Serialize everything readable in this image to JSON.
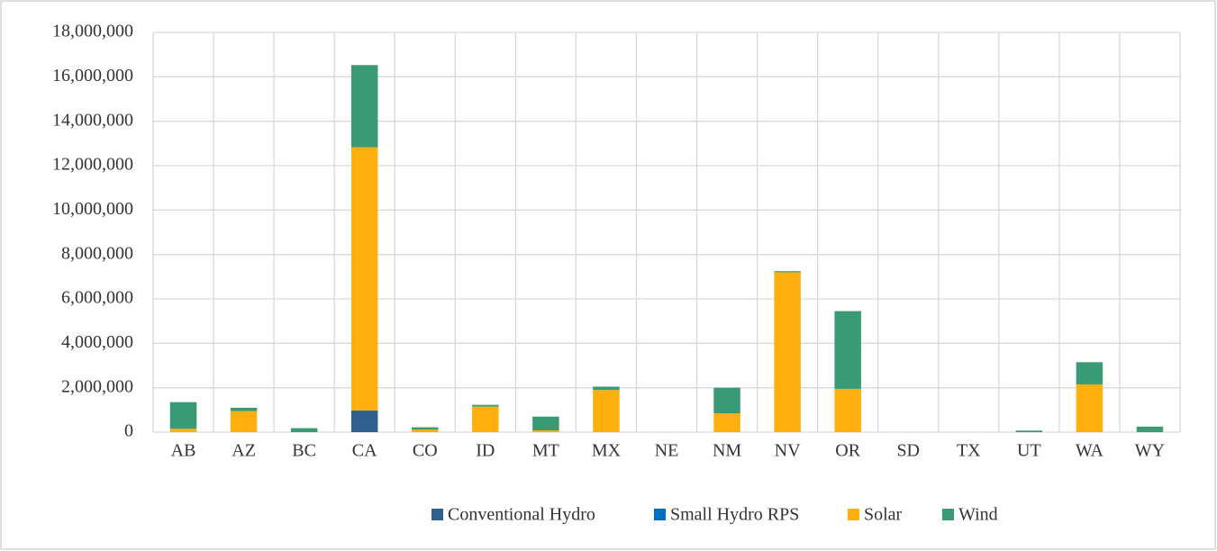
{
  "chart_data": {
    "type": "stacked_bar",
    "categories": [
      "AB",
      "AZ",
      "BC",
      "CA",
      "CO",
      "ID",
      "MT",
      "MX",
      "NE",
      "NM",
      "NV",
      "OR",
      "SD",
      "TX",
      "UT",
      "WA",
      "WY"
    ],
    "series": [
      {
        "name": "Conventional Hydro",
        "color": "#2f5f8c",
        "values": [
          0,
          0,
          0,
          950000,
          0,
          0,
          0,
          0,
          0,
          0,
          0,
          0,
          0,
          0,
          0,
          0,
          0
        ]
      },
      {
        "name": "Small Hydro RPS",
        "color": "#0070c0",
        "values": [
          0,
          0,
          0,
          30000,
          0,
          0,
          0,
          0,
          0,
          0,
          0,
          0,
          0,
          0,
          0,
          0,
          0
        ]
      },
      {
        "name": "Solar",
        "color": "#ffb00f",
        "values": [
          150000,
          950000,
          0,
          11850000,
          120000,
          1150000,
          80000,
          1900000,
          0,
          850000,
          7200000,
          1950000,
          0,
          0,
          0,
          2150000,
          0
        ]
      },
      {
        "name": "Wind",
        "color": "#3b9a76",
        "values": [
          1200000,
          150000,
          180000,
          3700000,
          100000,
          80000,
          620000,
          150000,
          0,
          1150000,
          50000,
          3500000,
          0,
          0,
          70000,
          1000000,
          250000
        ]
      }
    ],
    "ylim": [
      0,
      18000000
    ],
    "yticks": [
      0,
      {
        "value": 2000000,
        "label": "2,000,000"
      },
      {
        "value": 4000000,
        "label": "4,000,000"
      },
      {
        "value": 6000000,
        "label": "6,000,000"
      },
      {
        "value": 8000000,
        "label": "8,000,000"
      },
      {
        "value": 10000000,
        "label": "10,000,000"
      },
      {
        "value": 12000000,
        "label": "12,000,000"
      },
      {
        "value": 14000000,
        "label": "14,000,000"
      },
      {
        "value": 16000000,
        "label": "16,000,000"
      },
      {
        "value": 18000000,
        "label": "18,000,000"
      }
    ],
    "grid": true,
    "legend": "bottom"
  }
}
